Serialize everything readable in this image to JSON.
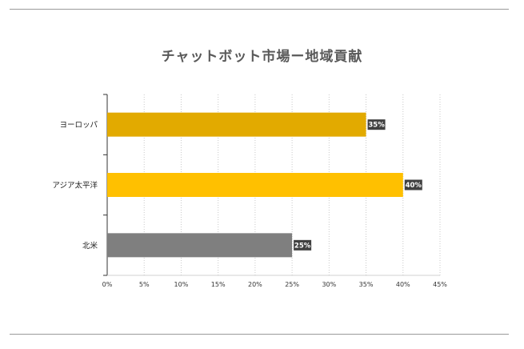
{
  "chart_data": {
    "type": "bar",
    "orientation": "horizontal",
    "title": "チャットボット市場ー地域貢献",
    "categories": [
      "ヨーロッパ",
      "アジア太平洋",
      "北米"
    ],
    "values": [
      35,
      40,
      25
    ],
    "data_labels": [
      "35%",
      "40%",
      "25%"
    ],
    "colors": [
      "#e2aa00",
      "#ffc000",
      "#7f7f7f"
    ],
    "xlim": [
      0,
      45
    ],
    "x_ticks": [
      0,
      5,
      10,
      15,
      20,
      25,
      30,
      35,
      40,
      45
    ],
    "x_tick_labels": [
      "0%",
      "5%",
      "10%",
      "15%",
      "20%",
      "25%",
      "30%",
      "35%",
      "40%",
      "45%"
    ],
    "grid": "vertical-dotted",
    "legend": "none"
  }
}
